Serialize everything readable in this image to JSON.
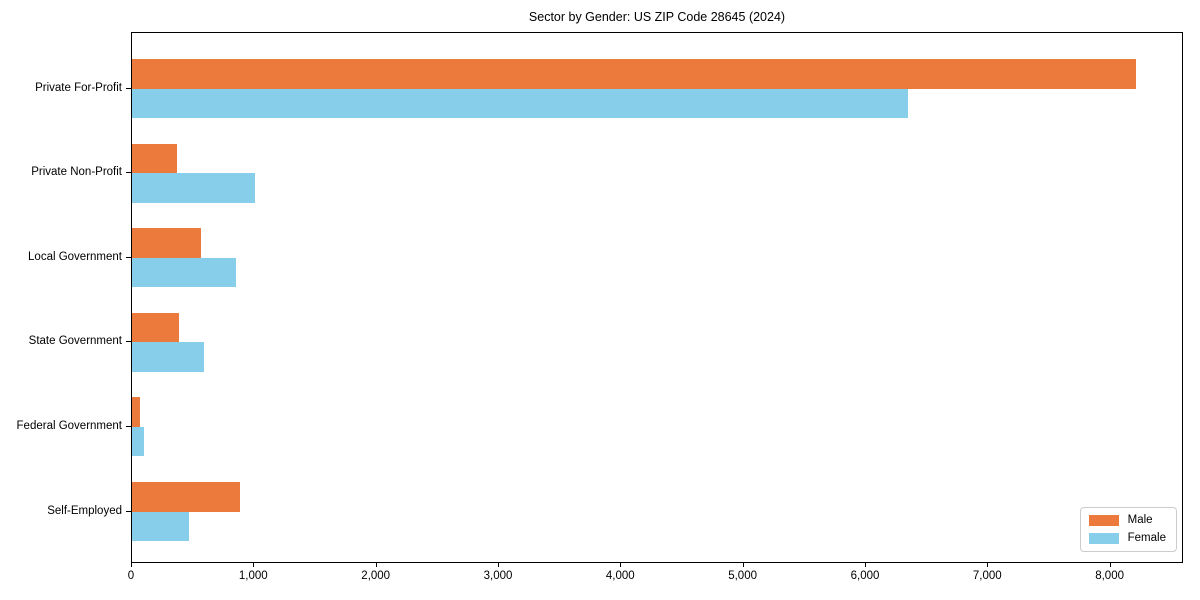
{
  "title": "Sector by Gender: US ZIP Code 28645 (2024)",
  "chart_data": {
    "type": "bar",
    "orientation": "horizontal",
    "title": "Sector by Gender: US ZIP Code 28645 (2024)",
    "categories": [
      "Private For-Profit",
      "Private Non-Profit",
      "Local Government",
      "State Government",
      "Federal Government",
      "Self-Employed"
    ],
    "series": [
      {
        "name": "Male",
        "color": "#ec7a3d",
        "values": [
          8210,
          370,
          565,
          380,
          65,
          880
        ]
      },
      {
        "name": "Female",
        "color": "#87ceeb",
        "values": [
          6340,
          1005,
          850,
          585,
          100,
          465
        ]
      }
    ],
    "xlabel": "",
    "ylabel": "",
    "xlim": [
      0,
      8600
    ],
    "xticks": [
      0,
      1000,
      2000,
      3000,
      4000,
      5000,
      6000,
      7000,
      8000
    ],
    "xtick_labels": [
      "0",
      "1,000",
      "2,000",
      "3,000",
      "4,000",
      "5,000",
      "6,000",
      "7,000",
      "8,000"
    ],
    "grid": false,
    "legend_position": "lower right",
    "legend_items": [
      {
        "label": "Male",
        "color": "#ec7a3d"
      },
      {
        "label": "Female",
        "color": "#87ceeb"
      }
    ]
  }
}
